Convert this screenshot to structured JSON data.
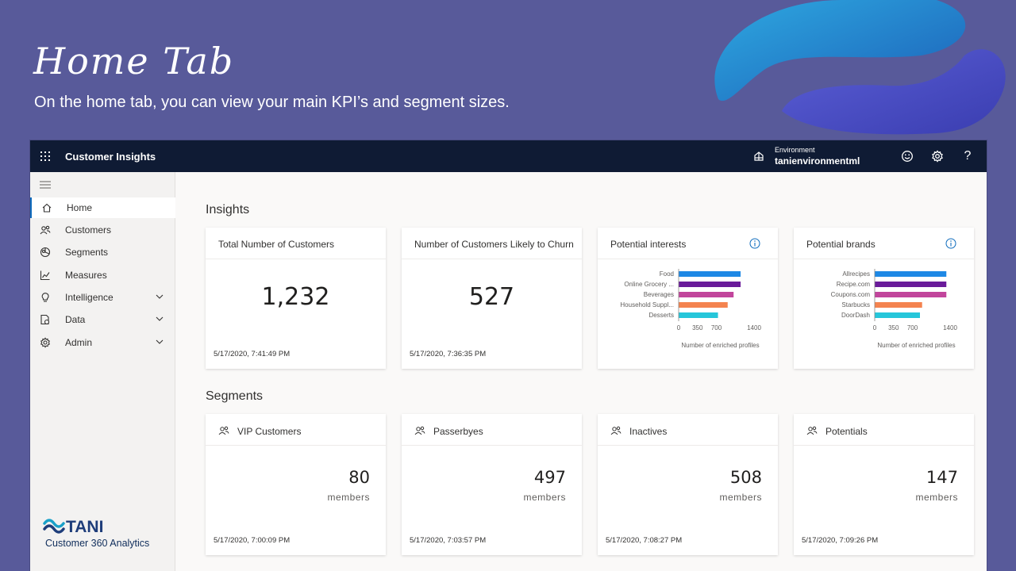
{
  "slide": {
    "title": "Home Tab",
    "subtitle": "On the home tab, you can view your main KPI’s and segment sizes."
  },
  "topbar": {
    "app_name": "Customer Insights",
    "environment_label": "Environment",
    "environment_name": "tanienvironmentml",
    "icons": [
      "waffle-icon",
      "environment-icon",
      "smiley-icon",
      "gear-icon",
      "help-icon"
    ]
  },
  "sidebar": {
    "items": [
      {
        "label": "Home",
        "icon": "home-icon",
        "active": true
      },
      {
        "label": "Customers",
        "icon": "people-icon"
      },
      {
        "label": "Segments",
        "icon": "segments-icon"
      },
      {
        "label": "Measures",
        "icon": "chart-icon"
      },
      {
        "label": "Intelligence",
        "icon": "lightbulb-icon",
        "expandable": true
      },
      {
        "label": "Data",
        "icon": "data-icon",
        "expandable": true
      },
      {
        "label": "Admin",
        "icon": "settings-icon",
        "expandable": true
      }
    ],
    "brand": {
      "logo_text": "TANI",
      "tagline": "Customer 360 Analytics"
    }
  },
  "insights": {
    "title": "Insights",
    "kpis": [
      {
        "title": "Total Number of Customers",
        "value": "1,232",
        "date": "5/17/2020, 7:41:49 PM"
      },
      {
        "title": "Number of Customers Likely to Churn",
        "value": "527",
        "date": "5/17/2020, 7:36:35 PM"
      }
    ],
    "interests_title": "Potential interests",
    "brands_title": "Potential brands"
  },
  "segments": {
    "title": "Segments",
    "unit": "members",
    "items": [
      {
        "title": "VIP Customers",
        "value": "80",
        "date": "5/17/2020, 7:00:09 PM"
      },
      {
        "title": "Passerbyes",
        "value": "497",
        "date": "5/17/2020, 7:03:57 PM"
      },
      {
        "title": "Inactives",
        "value": "508",
        "date": "5/17/2020, 7:08:27 PM"
      },
      {
        "title": "Potentials",
        "value": "147",
        "date": "5/17/2020, 7:09:26 PM"
      }
    ]
  },
  "colors": {
    "bar_colors": [
      "#1e88e5",
      "#6a1b9a",
      "#c2459c",
      "#f4834f",
      "#26c6da"
    ],
    "topbar": "#0f1b34",
    "slide_bg": "#585a9a"
  },
  "chart_data": [
    {
      "type": "bar",
      "orientation": "horizontal",
      "title": "Potential interests",
      "categories": [
        "Food",
        "Online Grocery ...",
        "Beverages",
        "Household Suppl...",
        "Desserts"
      ],
      "values": [
        1150,
        1150,
        1020,
        910,
        730
      ],
      "xlabel": "Number of enriched profiles",
      "xlim": [
        0,
        1400
      ],
      "xticks": [
        0,
        350,
        700,
        1400
      ]
    },
    {
      "type": "bar",
      "orientation": "horizontal",
      "title": "Potential brands",
      "categories": [
        "Allrecipes",
        "Recipe.com",
        "Coupons.com",
        "Starbucks",
        "DoorDash"
      ],
      "values": [
        1330,
        1330,
        1330,
        880,
        840
      ],
      "xlabel": "Number of enriched profiles",
      "xlim": [
        0,
        1400
      ],
      "xticks": [
        0,
        350,
        700,
        1400
      ]
    }
  ]
}
